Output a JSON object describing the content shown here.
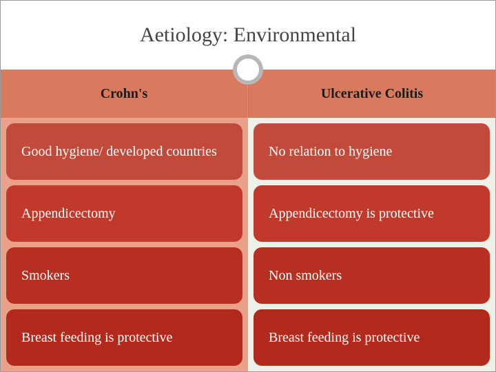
{
  "title": "Aetiology: Environmental",
  "columns": {
    "left": {
      "header": "Crohn's",
      "header_bg": "#d97a5e",
      "body_bg": "#e9a18a"
    },
    "right": {
      "header": "Ulcerative Colitis",
      "header_bg": "#d97a5e",
      "body_bg": "#eef1e7"
    }
  },
  "rows": [
    {
      "left": "Good hygiene/ developed countries",
      "right": "No relation to hygiene",
      "bg": "#c24a3a"
    },
    {
      "left": "Appendicectomy",
      "right": "Appendicectomy is protective",
      "bg": "#c1392b"
    },
    {
      "left": "Smokers",
      "right": "Non smokers",
      "bg": "#b62f20"
    },
    {
      "left": "Breast feeding is protective",
      "right": "Breast feeding is protective",
      "bg": "#b22a1c"
    }
  ],
  "style": {
    "title_fontsize": 30,
    "header_fontsize": 20,
    "cell_fontsize": 20,
    "circle_border_color": "#b7b7b7",
    "circle_bg": "#ffffff",
    "divider_color": "#777777",
    "pill_text_color": "#ffffff",
    "header_text_color": "#1a1a1a",
    "pill_radius": 12
  }
}
